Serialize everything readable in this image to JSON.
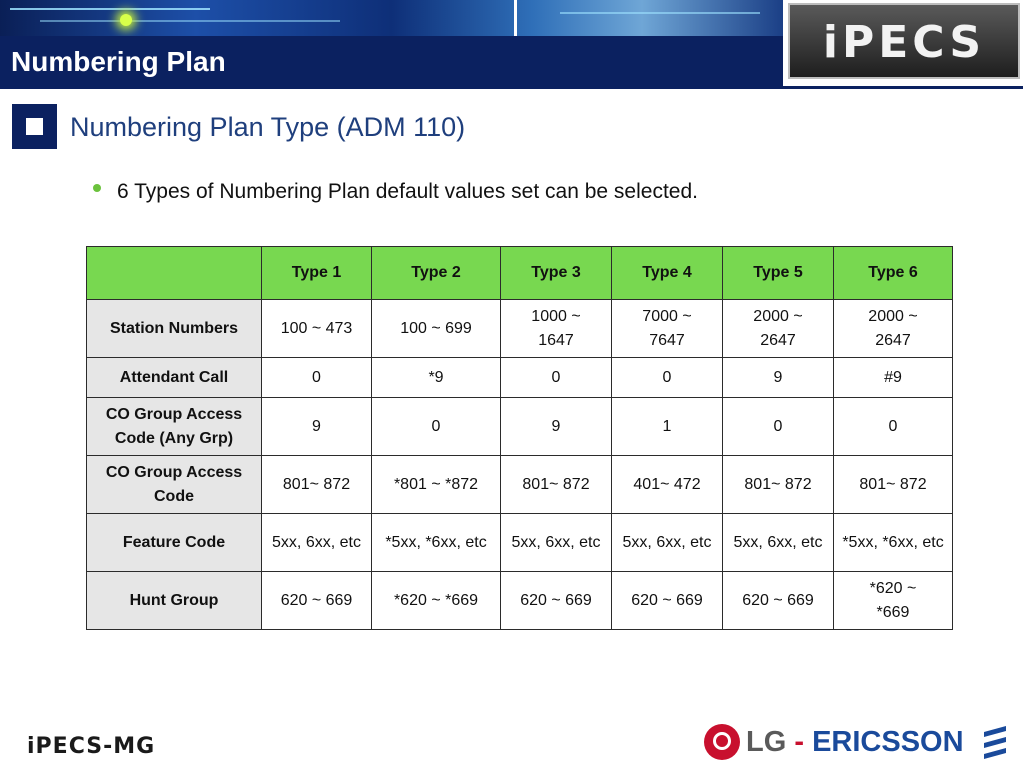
{
  "header": {
    "title": "Numbering Plan",
    "logo_text": "iPECS"
  },
  "section": {
    "heading": "Numbering Plan Type (ADM 110)"
  },
  "bullet": {
    "text": "6 Types of Numbering Plan default values set can be selected."
  },
  "table": {
    "columns": [
      "",
      "Type 1",
      "Type 2",
      "Type 3",
      "Type 4",
      "Type 5",
      "Type 6"
    ],
    "rows": [
      {
        "label": "Station Numbers",
        "values": [
          "100 ~ 473",
          "100 ~ 699",
          "1000 ~ 1647",
          "7000 ~ 7647",
          "2000 ~ 2647",
          "2000 ~ 2647"
        ]
      },
      {
        "label": "Attendant Call",
        "values": [
          "0",
          "*9",
          "0",
          "0",
          "9",
          "#9"
        ]
      },
      {
        "label": "CO Group Access Code (Any Grp)",
        "values": [
          "9",
          "0",
          "9",
          "1",
          "0",
          "0"
        ]
      },
      {
        "label": "CO Group Access Code",
        "values": [
          "801~ 872",
          "*801 ~ *872",
          "801~ 872",
          "401~ 472",
          "801~ 872",
          "801~ 872"
        ]
      },
      {
        "label": "Feature Code",
        "values": [
          "5xx, 6xx, etc",
          "*5xx, *6xx, etc",
          "5xx, 6xx, etc",
          "5xx, 6xx, etc",
          "5xx, 6xx, etc",
          "*5xx, *6xx, etc"
        ]
      },
      {
        "label": "Hunt Group",
        "values": [
          "620 ~ 669",
          "*620 ~ *669",
          "620 ~ 669",
          "620 ~ 669",
          "620 ~ 669",
          "*620 ~ *669"
        ]
      }
    ]
  },
  "footer": {
    "left_logo": "iPECS-MG",
    "brand_lg": "LG",
    "brand_dash": "-",
    "brand_ericsson": "ERICSSON"
  },
  "colors": {
    "title_bar": "#0b2160",
    "header_row": "#78d850",
    "row_header": "#e6e6e6",
    "bullet": "#6bc23c",
    "heading_text": "#1f3f7d",
    "lg_red": "#c8102e",
    "ericsson_blue": "#1a4a9b"
  },
  "icons": {
    "section_marker": "square-bullet-icon",
    "bullet": "dot-bullet-icon",
    "lg_logo": "lg-face-logo-icon",
    "ericsson_logo": "ericsson-bars-logo-icon"
  }
}
